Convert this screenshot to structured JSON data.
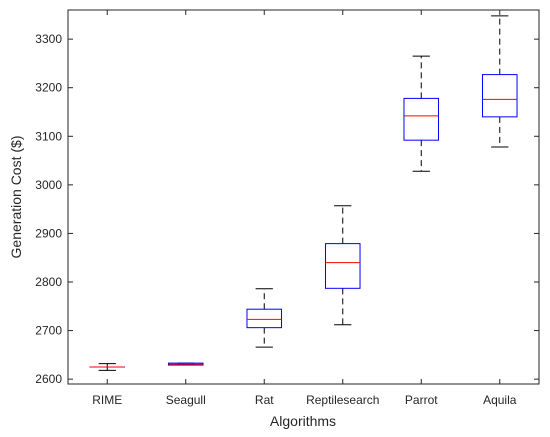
{
  "chart_data": {
    "type": "boxplot",
    "xlabel": "Algorithms",
    "ylabel": "Generation Cost ($)",
    "ylim": [
      2590,
      3360
    ],
    "yticks": [
      2600,
      2700,
      2800,
      2900,
      3000,
      3100,
      3200,
      3300
    ],
    "grid": false,
    "categories": [
      "RIME",
      "Seagull",
      "Rat",
      "Reptilesearch",
      "Parrot",
      "Aquila"
    ],
    "boxes": [
      {
        "name": "RIME",
        "whisker_low": 2618,
        "q1": 2625,
        "median": 2625,
        "q3": 2625,
        "whisker_high": 2632
      },
      {
        "name": "Seagull",
        "whisker_low": 2629,
        "q1": 2629,
        "median": 2631,
        "q3": 2633,
        "whisker_high": 2633
      },
      {
        "name": "Rat",
        "whisker_low": 2666,
        "q1": 2706,
        "median": 2723,
        "q3": 2744,
        "whisker_high": 2786
      },
      {
        "name": "Reptilesearch",
        "whisker_low": 2712,
        "q1": 2787,
        "median": 2840,
        "q3": 2879,
        "whisker_high": 2957
      },
      {
        "name": "Parrot",
        "whisker_low": 3028,
        "q1": 3092,
        "median": 3142,
        "q3": 3178,
        "whisker_high": 3265
      },
      {
        "name": "Aquila",
        "whisker_low": 3078,
        "q1": 3140,
        "median": 3176,
        "q3": 3227,
        "whisker_high": 3348
      }
    ],
    "colors": {
      "box": "#0000ff",
      "median": "#ff0000",
      "whisker": "#000000",
      "axis": "#262626"
    }
  }
}
